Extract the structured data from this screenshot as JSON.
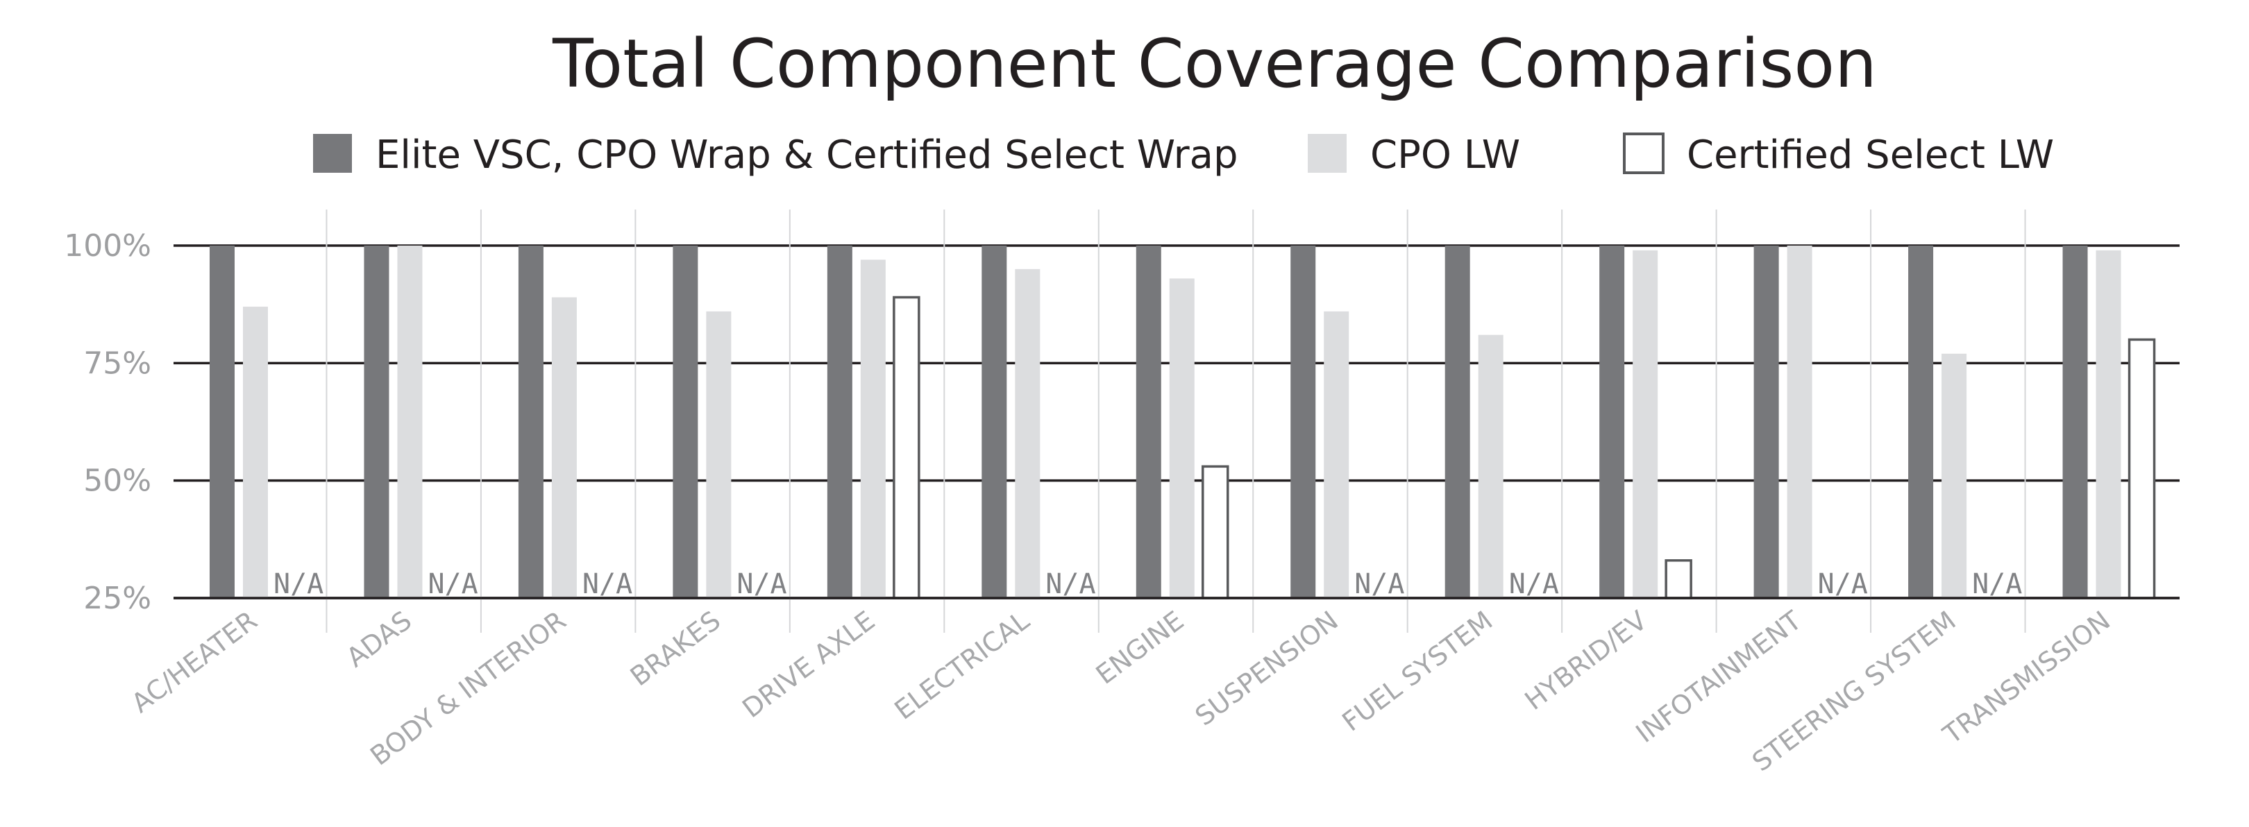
{
  "chart_data": {
    "type": "bar",
    "title": "Total Component Coverage Comparison",
    "xlabel": "",
    "ylabel": "",
    "ylim": [
      25,
      100
    ],
    "yticks": [
      {
        "value": 100,
        "label": "100%"
      },
      {
        "value": 75,
        "label": "75%"
      },
      {
        "value": 50,
        "label": "50%"
      },
      {
        "value": 25,
        "label": "25%"
      }
    ],
    "grid": true,
    "legend_position": "top",
    "categories": [
      "AC/HEATER",
      "ADAS",
      "BODY & INTERIOR",
      "BRAKES",
      "DRIVE AXLE",
      "ELECTRICAL",
      "ENGINE",
      "SUSPENSION",
      "FUEL SYSTEM",
      "HYBRID/EV",
      "INFOTAINMENT",
      "STEERING SYSTEM",
      "TRANSMISSION"
    ],
    "na_label": "N/A",
    "series": [
      {
        "name": "Elite VSC, CPO Wrap & Certified Select Wrap",
        "color": "#77787b",
        "style": "filled",
        "values": [
          100,
          100,
          100,
          100,
          100,
          100,
          100,
          100,
          100,
          100,
          100,
          100,
          100
        ]
      },
      {
        "name": "CPO LW",
        "color": "#dcdddf",
        "style": "filled",
        "values": [
          87,
          100,
          89,
          86,
          97,
          95,
          93,
          86,
          81,
          99,
          100,
          77,
          99
        ]
      },
      {
        "name": "Certified Select LW",
        "color": "#ffffff",
        "style": "outline",
        "stroke": "#58595b",
        "values": [
          null,
          null,
          null,
          null,
          89,
          null,
          53,
          null,
          null,
          33,
          null,
          null,
          80
        ]
      }
    ]
  }
}
